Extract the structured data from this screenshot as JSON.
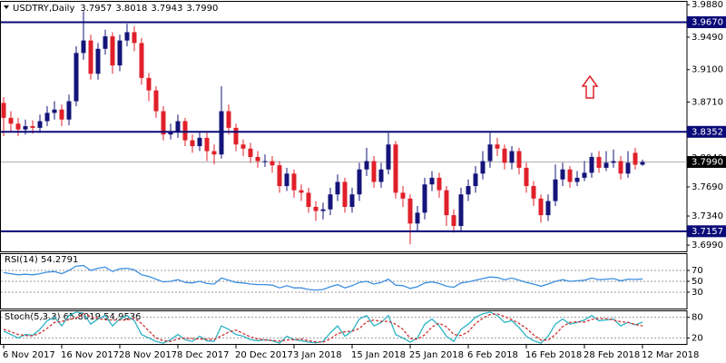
{
  "chart_data": [
    {
      "type": "candlestick",
      "title": "USDTRY,Daily",
      "ohlc_labels": [
        "3.7957",
        "3.8018",
        "3.7943",
        "3.7990"
      ],
      "categories": [
        "6 Nov 2017",
        null,
        null,
        null,
        null,
        null,
        null,
        null,
        "16 Nov 2017",
        null,
        null,
        null,
        null,
        null,
        null,
        null,
        "28 Nov 2017",
        null,
        null,
        null,
        null,
        null,
        null,
        null,
        "8 Dec 2017",
        null,
        null,
        null,
        null,
        null,
        null,
        null,
        "20 Dec 2017",
        null,
        null,
        null,
        null,
        null,
        null,
        null,
        "3 Jan 2018",
        null,
        null,
        null,
        null,
        null,
        null,
        null,
        "15 Jan 2018",
        null,
        null,
        null,
        null,
        null,
        null,
        null,
        "25 Jan 2018",
        null,
        null,
        null,
        null,
        null,
        null,
        null,
        "6 Feb 2018",
        null,
        null,
        null,
        null,
        null,
        null,
        null,
        "16 Feb 2018",
        null,
        null,
        null,
        null,
        null,
        null,
        null,
        "28 Feb 2018",
        null,
        null,
        null,
        null,
        null,
        null,
        null,
        "12 Mar 2018"
      ],
      "open": [
        3.87,
        3.852,
        3.845,
        3.838,
        3.842,
        3.84,
        3.848,
        3.858,
        3.862,
        3.85,
        3.872,
        3.93,
        3.945,
        3.905,
        3.935,
        3.95,
        3.915,
        3.945,
        3.955,
        3.942,
        3.9,
        3.885,
        3.86,
        3.832,
        3.835,
        3.848,
        3.825,
        3.818,
        3.828,
        3.812,
        3.808,
        3.86,
        3.84,
        3.82,
        3.815,
        3.805,
        3.8,
        3.8,
        3.795,
        3.77,
        3.785,
        3.765,
        3.762,
        3.745,
        3.74,
        3.742,
        3.76,
        3.775,
        3.745,
        3.76,
        3.79,
        3.8,
        3.775,
        3.79,
        3.82,
        3.762,
        3.755,
        3.725,
        3.738,
        3.772,
        3.78,
        3.765,
        3.735,
        3.722,
        3.76,
        3.77,
        3.785,
        3.8,
        3.82,
        3.815,
        3.798,
        3.812,
        3.792,
        3.77,
        3.755,
        3.735,
        3.752,
        3.778,
        3.79,
        3.775,
        3.78,
        3.786,
        3.805,
        3.792,
        3.798,
        3.8,
        3.785,
        3.81,
        3.7957
      ],
      "high": [
        3.877,
        3.86,
        3.852,
        3.85,
        3.849,
        3.856,
        3.866,
        3.872,
        3.868,
        3.88,
        3.938,
        3.98,
        3.952,
        3.942,
        3.958,
        3.955,
        3.952,
        3.965,
        3.962,
        3.948,
        3.906,
        3.89,
        3.866,
        3.845,
        3.856,
        3.852,
        3.832,
        3.836,
        3.834,
        3.82,
        3.89,
        3.868,
        3.845,
        3.826,
        3.822,
        3.812,
        3.808,
        3.806,
        3.8,
        3.792,
        3.79,
        3.772,
        3.768,
        3.752,
        3.75,
        3.768,
        3.784,
        3.78,
        3.768,
        3.798,
        3.816,
        3.806,
        3.798,
        3.834,
        3.824,
        3.77,
        3.76,
        3.746,
        3.78,
        3.788,
        3.786,
        3.77,
        3.742,
        3.768,
        3.778,
        3.794,
        3.812,
        3.834,
        3.828,
        3.82,
        3.818,
        3.816,
        3.798,
        3.776,
        3.76,
        3.76,
        3.796,
        3.798,
        3.794,
        3.788,
        3.8,
        3.81,
        3.812,
        3.812,
        3.814,
        3.806,
        3.812,
        3.816,
        3.8018
      ],
      "low": [
        3.83,
        3.835,
        3.83,
        3.832,
        3.833,
        3.834,
        3.842,
        3.85,
        3.842,
        3.843,
        3.866,
        3.922,
        3.898,
        3.898,
        3.928,
        3.905,
        3.908,
        3.938,
        3.932,
        3.892,
        3.872,
        3.852,
        3.825,
        3.826,
        3.828,
        3.818,
        3.81,
        3.812,
        3.8,
        3.796,
        3.803,
        3.832,
        3.812,
        3.806,
        3.798,
        3.792,
        3.793,
        3.786,
        3.762,
        3.764,
        3.756,
        3.752,
        3.738,
        3.728,
        3.73,
        3.735,
        3.752,
        3.738,
        3.738,
        3.752,
        3.782,
        3.768,
        3.768,
        3.784,
        3.755,
        3.745,
        3.7,
        3.716,
        3.73,
        3.764,
        3.756,
        3.722,
        3.714,
        3.716,
        3.752,
        3.762,
        3.778,
        3.792,
        3.806,
        3.79,
        3.79,
        3.784,
        3.762,
        3.746,
        3.726,
        3.728,
        3.746,
        3.77,
        3.768,
        3.77,
        3.776,
        3.78,
        3.786,
        3.788,
        3.792,
        3.778,
        3.78,
        3.79,
        3.7943
      ],
      "close": [
        3.852,
        3.845,
        3.838,
        3.842,
        3.84,
        3.848,
        3.858,
        3.862,
        3.85,
        3.872,
        3.93,
        3.945,
        3.905,
        3.935,
        3.95,
        3.915,
        3.945,
        3.955,
        3.942,
        3.9,
        3.885,
        3.86,
        3.832,
        3.835,
        3.848,
        3.825,
        3.818,
        3.828,
        3.812,
        3.808,
        3.86,
        3.84,
        3.82,
        3.815,
        3.805,
        3.8,
        3.8,
        3.795,
        3.77,
        3.785,
        3.765,
        3.762,
        3.745,
        3.74,
        3.742,
        3.76,
        3.775,
        3.745,
        3.76,
        3.79,
        3.8,
        3.775,
        3.79,
        3.82,
        3.762,
        3.755,
        3.725,
        3.738,
        3.772,
        3.78,
        3.765,
        3.735,
        3.722,
        3.76,
        3.77,
        3.785,
        3.8,
        3.82,
        3.815,
        3.798,
        3.812,
        3.792,
        3.77,
        3.755,
        3.735,
        3.752,
        3.778,
        3.79,
        3.775,
        3.78,
        3.786,
        3.805,
        3.792,
        3.798,
        3.8,
        3.785,
        3.798,
        3.7957,
        3.799
      ],
      "up_color": "#14147a",
      "down_color": "#e0202a",
      "ylim": [
        3.6915,
        3.9915
      ],
      "yticks": [
        {
          "value": 3.988,
          "label": "3.9880"
        },
        {
          "value": 3.949,
          "label": "3.9490"
        },
        {
          "value": 3.91,
          "label": "3.9100"
        },
        {
          "value": 3.871,
          "label": "3.8710"
        },
        {
          "value": 3.804,
          "label": "3.8040"
        },
        {
          "value": 3.769,
          "label": "3.7690"
        },
        {
          "value": 3.734,
          "label": "3.7340"
        },
        {
          "value": 3.699,
          "label": "3.6990"
        }
      ],
      "grid": false,
      "levels": [
        {
          "value": 3.967,
          "label": "3.9670"
        },
        {
          "value": 3.8352,
          "label": "3.8352"
        },
        {
          "value": 3.7157,
          "label": "3.7157"
        }
      ],
      "level_color": "#0a0a78",
      "price_line": {
        "value": 3.799,
        "label": "3.7990"
      },
      "price_color": "#000000"
    },
    {
      "type": "line",
      "title": "RSI(14) 54.2791",
      "series": [
        {
          "color": "#3d8fe0",
          "values": [
            66,
            64,
            62,
            63,
            62,
            64,
            67,
            68,
            64,
            70,
            78,
            79,
            70,
            74,
            76,
            68,
            73,
            74,
            71,
            62,
            59,
            54,
            49,
            50,
            53,
            48,
            47,
            50,
            46,
            45,
            56,
            52,
            48,
            47,
            45,
            44,
            44,
            43,
            38,
            42,
            38,
            38,
            35,
            34,
            35,
            40,
            44,
            38,
            42,
            48,
            50,
            45,
            48,
            54,
            43,
            42,
            37,
            40,
            47,
            49,
            46,
            41,
            39,
            47,
            49,
            52,
            55,
            58,
            57,
            53,
            56,
            52,
            48,
            45,
            41,
            45,
            50,
            53,
            50,
            51,
            52,
            56,
            53,
            54,
            55,
            51,
            54,
            53.5,
            54.2791
          ]
        }
      ],
      "ylim": [
        0,
        100
      ],
      "yticks": [
        70,
        50,
        30
      ],
      "grid": true
    },
    {
      "type": "line",
      "title": "Stoch(5,3,3) 65.8019 54.9536",
      "series": [
        {
          "color": "#2fb3c4",
          "dashed": false,
          "values": [
            40,
            30,
            20,
            30,
            28,
            45,
            70,
            80,
            55,
            85,
            95,
            92,
            60,
            75,
            85,
            55,
            75,
            85,
            70,
            30,
            20,
            10,
            5,
            15,
            30,
            15,
            10,
            25,
            12,
            10,
            55,
            45,
            30,
            25,
            15,
            12,
            15,
            12,
            5,
            25,
            15,
            12,
            8,
            6,
            10,
            35,
            55,
            25,
            40,
            75,
            85,
            55,
            65,
            85,
            30,
            20,
            8,
            20,
            60,
            75,
            55,
            25,
            10,
            45,
            60,
            80,
            90,
            95,
            85,
            65,
            70,
            50,
            25,
            12,
            5,
            25,
            60,
            75,
            60,
            65,
            72,
            85,
            70,
            72,
            75,
            55,
            65,
            58,
            65.8019
          ]
        },
        {
          "color": "#d03030",
          "dashed": true,
          "values": [
            45,
            38,
            30,
            27,
            26,
            34,
            48,
            65,
            68,
            73,
            78,
            91,
            82,
            76,
            73,
            72,
            72,
            72,
            77,
            62,
            40,
            20,
            12,
            10,
            17,
            20,
            18,
            17,
            16,
            16,
            26,
            37,
            43,
            33,
            23,
            17,
            14,
            13,
            11,
            14,
            15,
            17,
            12,
            9,
            8,
            17,
            33,
            38,
            40,
            47,
            67,
            72,
            68,
            68,
            60,
            45,
            19,
            16,
            29,
            52,
            63,
            52,
            30,
            27,
            38,
            62,
            77,
            88,
            90,
            82,
            73,
            62,
            48,
            29,
            14,
            14,
            30,
            53,
            65,
            67,
            66,
            74,
            76,
            76,
            72,
            67,
            65,
            59,
            54.9536
          ]
        }
      ],
      "ylim": [
        0,
        100
      ],
      "yticks": [
        80,
        20
      ],
      "grid": true
    }
  ]
}
